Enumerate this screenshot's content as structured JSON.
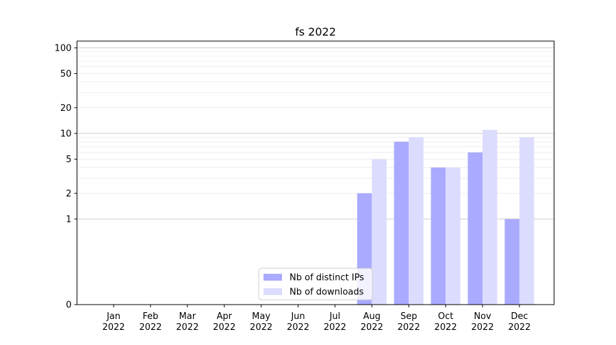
{
  "chart_data": {
    "type": "bar",
    "title": "fs 2022",
    "xlabel": "",
    "ylabel": "",
    "y_scale": "symlog",
    "ylim": [
      0,
      120
    ],
    "y_ticks": [
      0,
      1,
      2,
      5,
      10,
      20,
      50,
      100
    ],
    "y_tick_labels": [
      "0",
      "1",
      "2",
      "5",
      "10",
      "20",
      "50",
      "100"
    ],
    "grid": "horizontal",
    "legend_position": "bottom-center",
    "categories": [
      "Jan\n2022",
      "Feb\n2022",
      "Mar\n2022",
      "Apr\n2022",
      "May\n2022",
      "Jun\n2022",
      "Jul\n2022",
      "Aug\n2022",
      "Sep\n2022",
      "Oct\n2022",
      "Nov\n2022",
      "Dec\n2022"
    ],
    "series": [
      {
        "name": "Nb of distinct IPs",
        "color": "#aaaaff",
        "values": [
          0,
          0,
          0,
          0,
          0,
          0,
          0,
          2,
          8,
          4,
          6,
          1
        ]
      },
      {
        "name": "Nb of downloads",
        "color": "#dcdcff",
        "values": [
          0,
          0,
          0,
          0,
          0,
          0,
          0,
          5,
          9,
          4,
          11,
          9
        ]
      }
    ]
  }
}
